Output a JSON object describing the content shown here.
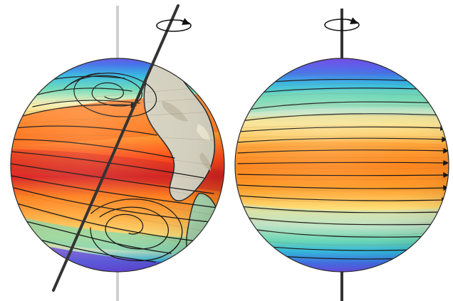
{
  "figure": {
    "panels": [
      {
        "id": "tilted-earth",
        "description_icon": "globe-icon",
        "tilted_axis": true,
        "surface_colors": [
          "#d81e1e",
          "#ff4a14",
          "#ff7f1a",
          "#ffb347",
          "#ffe27a",
          "#f3f0b6",
          "#bfe3c6",
          "#68d9b5",
          "#2fb7e0",
          "#3f6ee8",
          "#7a3ce5"
        ],
        "land_colors": [
          "#d4d0bf",
          "#beb7a3",
          "#ece8d2",
          "#a9d7ad",
          "#e7f1d6"
        ]
      },
      {
        "id": "upright-earth",
        "description_icon": "globe-icon",
        "tilted_axis": false,
        "surface_colors": [
          "#7a3ce5",
          "#3f6ee8",
          "#2fb7e0",
          "#68d9b5",
          "#bfe3c6",
          "#f3f0b6",
          "#ffe27a",
          "#ffb347",
          "#ff8c1a",
          "#ff6f12"
        ]
      }
    ],
    "rotation_icon": "rotation-arrow-icon",
    "axis_colors": {
      "dark": "#333333",
      "light": "#cfcfcf"
    }
  }
}
